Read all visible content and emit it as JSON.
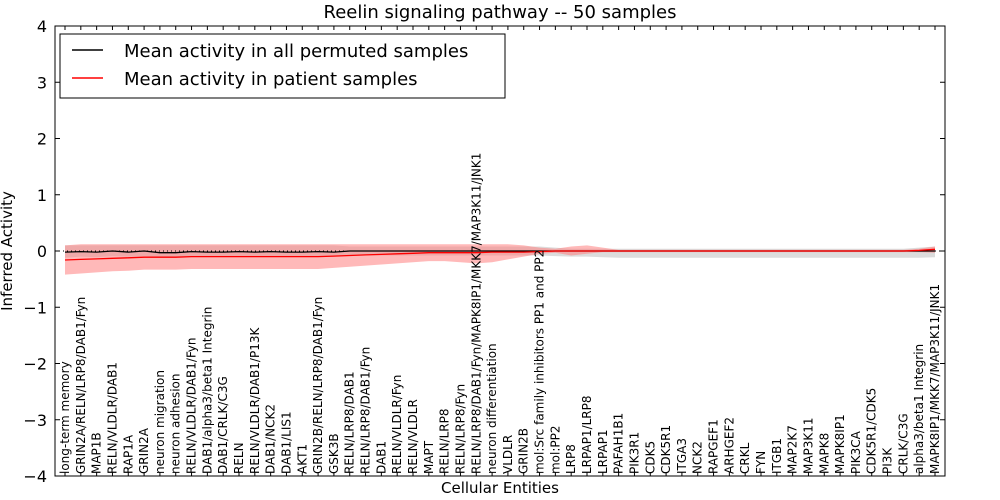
{
  "chart_data": {
    "type": "line",
    "title": "Reelin signaling pathway -- 50 samples",
    "xlabel": "Cellular Entities",
    "ylabel": "Inferred Activity",
    "ylim": [
      -4,
      4
    ],
    "yticks": [
      "−4",
      "−3",
      "−2",
      "−1",
      "0",
      "1",
      "2",
      "3",
      "4"
    ],
    "legend_position": "top-left",
    "colors": {
      "permuted": "#000000",
      "patient": "#ff0000",
      "patient_band": "#ff8080",
      "permuted_band": "#bfbfbf"
    },
    "categories": [
      "long-term memory",
      "GRIN2A/RELN/LRP8/DAB1/Fyn",
      "MAP1B",
      "RELN/VLDLR/DAB1",
      "RAP1A",
      "GRIN2A",
      "neuron migration",
      "neuron adhesion",
      "RELN/VLDLR/DAB1/Fyn",
      "DAB1/alpha3/beta1 Integrin",
      "DAB1/CRLK/C3G",
      "RELN",
      "RELN/VLDLR/DAB1/P13K",
      "DAB1/NCK2",
      "DAB1/LIS1",
      "AKT1",
      "GRIN2B/RELN/LRP8/DAB1/Fyn",
      "GSK3B",
      "RELN/LRP8/DAB1",
      "RELN/LRP8/DAB1/Fyn",
      "DAB1",
      "RELN/VLDLR/Fyn",
      "RELN/VLDLR",
      "MAPT",
      "RELN/LRP8",
      "RELN/LRP8/Fyn",
      "RELN/LRP8/DAB1/Fyn/MAPK8IP1/MKK7/MAP3K11/JNK1",
      "neuron differentiation",
      "VLDLR",
      "GRIN2B",
      "mol:Src family inhibitors PP1 and PP2",
      "mol:PP2",
      "LRP8",
      "LRPAP1/LRP8",
      "LRPAP1",
      "PAFAH1B1",
      "PIK3R1",
      "CDK5",
      "CDK5R1",
      "ITGA3",
      "NCK2",
      "RAPGEF1",
      "ARHGEF2",
      "CRKL",
      "FYN",
      "ITGB1",
      "MAP2K7",
      "MAP3K11",
      "MAPK8",
      "MAPK8IP1",
      "PIK3CA",
      "CDK5R1/CDK5",
      "PI3K",
      "CRLK/C3G",
      "alpha3/beta1 Integrin",
      "MAPK8IP1/MKK7/MAP3K11/JNK1"
    ],
    "series": [
      {
        "name": "Mean activity in all permuted samples",
        "values": [
          -0.02,
          -0.01,
          -0.02,
          0.0,
          -0.02,
          0.0,
          -0.03,
          -0.03,
          -0.01,
          -0.02,
          -0.02,
          -0.01,
          -0.02,
          -0.01,
          -0.02,
          -0.02,
          -0.01,
          -0.02,
          0.0,
          0.0,
          0.0,
          0.0,
          0.0,
          0.0,
          0.0,
          0.0,
          0.0,
          0.0,
          0.0,
          0.0,
          0.0,
          0.0,
          0.0,
          0.0,
          0.0,
          0.0,
          0.0,
          0.0,
          0.0,
          0.0,
          0.0,
          0.0,
          0.0,
          0.0,
          0.0,
          0.0,
          0.0,
          0.0,
          0.0,
          0.0,
          0.0,
          0.0,
          0.0,
          0.0,
          0.0,
          0.0
        ],
        "lower": [
          -0.12,
          -0.1,
          -0.11,
          -0.09,
          -0.1,
          -0.09,
          -0.1,
          -0.1,
          -0.09,
          -0.1,
          -0.1,
          -0.09,
          -0.1,
          -0.09,
          -0.1,
          -0.1,
          -0.09,
          -0.1,
          -0.08,
          -0.08,
          -0.08,
          -0.08,
          -0.08,
          -0.08,
          -0.08,
          -0.08,
          -0.08,
          -0.08,
          -0.08,
          -0.08,
          -0.08,
          -0.09,
          -0.1,
          -0.1,
          -0.11,
          -0.12,
          -0.12,
          -0.12,
          -0.12,
          -0.12,
          -0.12,
          -0.12,
          -0.12,
          -0.12,
          -0.12,
          -0.12,
          -0.12,
          -0.12,
          -0.12,
          -0.12,
          -0.12,
          -0.12,
          -0.12,
          -0.12,
          -0.12,
          -0.11
        ],
        "upper": [
          0.1,
          0.1,
          0.1,
          0.1,
          0.1,
          0.1,
          0.1,
          0.1,
          0.1,
          0.1,
          0.1,
          0.1,
          0.1,
          0.1,
          0.1,
          0.1,
          0.1,
          0.1,
          0.08,
          0.08,
          0.08,
          0.08,
          0.08,
          0.08,
          0.08,
          0.08,
          0.08,
          0.08,
          0.08,
          0.08,
          0.08,
          0.06,
          0.04,
          0.04,
          0.04,
          0.04,
          0.04,
          0.04,
          0.04,
          0.04,
          0.04,
          0.04,
          0.04,
          0.04,
          0.04,
          0.04,
          0.04,
          0.04,
          0.04,
          0.04,
          0.04,
          0.04,
          0.04,
          0.04,
          0.06,
          0.08
        ]
      },
      {
        "name": "Mean activity in patient samples",
        "values": [
          -0.16,
          -0.15,
          -0.14,
          -0.13,
          -0.12,
          -0.11,
          -0.11,
          -0.11,
          -0.1,
          -0.1,
          -0.1,
          -0.1,
          -0.1,
          -0.1,
          -0.1,
          -0.1,
          -0.1,
          -0.09,
          -0.08,
          -0.07,
          -0.06,
          -0.05,
          -0.04,
          -0.03,
          -0.03,
          -0.03,
          -0.03,
          -0.02,
          -0.02,
          -0.02,
          -0.01,
          0.0,
          0.0,
          0.0,
          0.0,
          0.0,
          0.0,
          0.0,
          0.0,
          0.0,
          0.0,
          0.0,
          0.0,
          0.0,
          0.0,
          0.0,
          0.0,
          0.0,
          0.0,
          0.0,
          0.0,
          0.0,
          0.0,
          0.0,
          0.01,
          0.03
        ],
        "lower": [
          -0.42,
          -0.4,
          -0.38,
          -0.36,
          -0.35,
          -0.33,
          -0.33,
          -0.33,
          -0.32,
          -0.32,
          -0.32,
          -0.32,
          -0.32,
          -0.32,
          -0.32,
          -0.32,
          -0.32,
          -0.3,
          -0.28,
          -0.26,
          -0.24,
          -0.22,
          -0.2,
          -0.18,
          -0.18,
          -0.2,
          -0.22,
          -0.2,
          -0.15,
          -0.1,
          -0.05,
          -0.03,
          -0.08,
          -0.05,
          -0.02,
          -0.02,
          -0.02,
          -0.02,
          -0.02,
          -0.02,
          -0.02,
          -0.02,
          -0.02,
          -0.02,
          -0.02,
          -0.02,
          -0.02,
          -0.02,
          -0.02,
          -0.02,
          -0.02,
          -0.02,
          -0.02,
          -0.02,
          -0.02,
          -0.03
        ],
        "upper": [
          0.1,
          0.12,
          0.12,
          0.12,
          0.12,
          0.12,
          0.12,
          0.12,
          0.12,
          0.12,
          0.12,
          0.12,
          0.12,
          0.12,
          0.12,
          0.12,
          0.12,
          0.12,
          0.12,
          0.12,
          0.12,
          0.12,
          0.12,
          0.12,
          0.12,
          0.12,
          0.12,
          0.12,
          0.12,
          0.1,
          0.06,
          0.04,
          0.08,
          0.1,
          0.06,
          0.02,
          0.02,
          0.02,
          0.02,
          0.02,
          0.02,
          0.02,
          0.02,
          0.02,
          0.02,
          0.02,
          0.02,
          0.02,
          0.02,
          0.02,
          0.02,
          0.02,
          0.02,
          0.02,
          0.04,
          0.08
        ]
      }
    ]
  }
}
